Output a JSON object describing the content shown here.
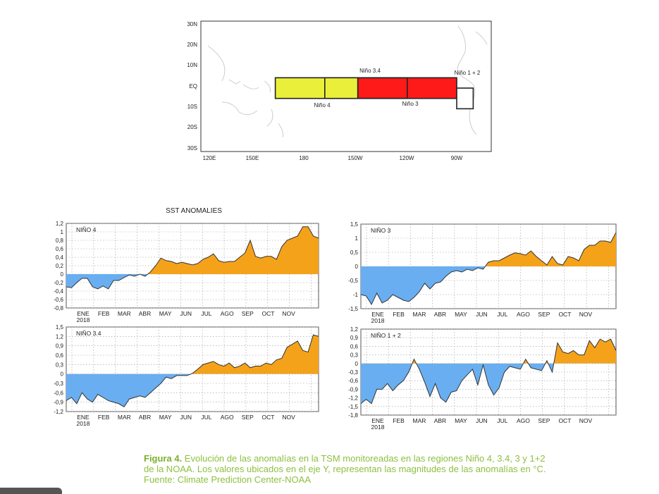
{
  "map": {
    "lat_labels": [
      "30N",
      "20N",
      "10N",
      "EQ",
      "10S",
      "20S",
      "30S"
    ],
    "lon_labels": [
      "120E",
      "150E",
      "180",
      "150W",
      "120W",
      "90W"
    ],
    "regions": [
      {
        "name": "Niño 4",
        "color": "#eaf03a",
        "lon": [
          160,
          210
        ],
        "lat": [
          -5,
          5
        ]
      },
      {
        "name": "Niño 3.4",
        "color": "#eaf03a",
        "lon": [
          190,
          240
        ],
        "lat": [
          -5,
          5
        ]
      },
      {
        "name": "Niño 3",
        "color": "#ff1a1a",
        "lon": [
          210,
          270
        ],
        "lat": [
          -5,
          5
        ]
      },
      {
        "name": "Niño 1 + 2",
        "color": "#ffffff",
        "lon": [
          270,
          280
        ],
        "lat": [
          -10,
          0
        ]
      }
    ],
    "label_nino4": "Niño 4",
    "label_nino34": "Niño 3.4",
    "label_nino3": "Niño 3",
    "label_nino12": "Niño 1 + 2"
  },
  "suptitle": "SST ANOMALIES",
  "colors": {
    "positive": "#f5a21b",
    "negative": "#69aef0",
    "line": "#333333"
  },
  "months": [
    "ENE",
    "FEB",
    "MAR",
    "ABR",
    "MAY",
    "JUN",
    "JUL",
    "AGO",
    "SEP",
    "OCT",
    "NOV"
  ],
  "year_label": "2018",
  "chart_data": [
    {
      "type": "area",
      "title": "NIÑO 4",
      "ylim": [
        -0.8,
        1.2
      ],
      "yticks": [
        "1,2",
        "1",
        "0,8",
        "0,6",
        "0,4",
        "0,2",
        "0",
        "-0,2",
        "-0,4",
        "-0,6",
        "-0,8"
      ],
      "x_weeks": [
        0,
        1,
        2,
        3,
        4,
        5,
        6,
        7,
        8,
        9,
        10,
        11,
        12,
        13,
        14,
        15,
        16,
        17,
        18,
        19,
        20,
        21,
        22,
        23,
        24,
        25,
        26,
        27,
        28,
        29,
        30,
        31,
        32,
        33,
        34,
        35,
        36,
        37,
        38,
        39,
        40,
        41,
        42,
        43,
        44,
        45,
        46,
        47,
        48
      ],
      "values": [
        -0.3,
        -0.32,
        -0.2,
        -0.1,
        -0.1,
        -0.3,
        -0.35,
        -0.28,
        -0.35,
        -0.15,
        -0.15,
        -0.08,
        -0.02,
        -0.05,
        0.0,
        -0.05,
        0.05,
        0.2,
        0.38,
        0.32,
        0.3,
        0.25,
        0.28,
        0.25,
        0.22,
        0.25,
        0.35,
        0.4,
        0.48,
        0.32,
        0.28,
        0.3,
        0.3,
        0.4,
        0.5,
        0.8,
        0.42,
        0.38,
        0.42,
        0.42,
        0.35,
        0.65,
        0.8,
        0.85,
        0.9,
        1.12,
        1.12,
        0.9,
        0.85
      ]
    },
    {
      "type": "area",
      "title": "NIÑO 3",
      "ylim": [
        -1.5,
        1.5
      ],
      "yticks": [
        "1,5",
        "1",
        "0,5",
        "0",
        "-0,5",
        "-1",
        "-1,5"
      ],
      "x_weeks": [
        0,
        1,
        2,
        3,
        4,
        5,
        6,
        7,
        8,
        9,
        10,
        11,
        12,
        13,
        14,
        15,
        16,
        17,
        18,
        19,
        20,
        21,
        22,
        23,
        24,
        25,
        26,
        27,
        28,
        29,
        30,
        31,
        32,
        33,
        34,
        35,
        36,
        37,
        38,
        39,
        40,
        41,
        42,
        43,
        44,
        45,
        46,
        47,
        48
      ],
      "values": [
        -1.0,
        -1.05,
        -1.35,
        -0.95,
        -1.3,
        -1.2,
        -1.0,
        -1.1,
        -1.2,
        -1.25,
        -1.1,
        -0.9,
        -0.6,
        -0.8,
        -0.6,
        -0.55,
        -0.35,
        -0.2,
        -0.15,
        -0.2,
        -0.1,
        -0.15,
        -0.05,
        -0.1,
        0.15,
        0.2,
        0.2,
        0.3,
        0.4,
        0.48,
        0.45,
        0.4,
        0.55,
        0.35,
        0.2,
        0.05,
        0.35,
        0.1,
        0.05,
        0.35,
        0.3,
        0.2,
        0.6,
        0.75,
        0.75,
        0.9,
        0.9,
        0.85,
        1.2
      ]
    },
    {
      "type": "area",
      "title": "NIÑO 3.4",
      "ylim": [
        -1.2,
        1.5
      ],
      "yticks": [
        "1,5",
        "1,2",
        "0,9",
        "0,6",
        "0,3",
        "0",
        "-0,3",
        "-0,6",
        "-0,9",
        "-1,2"
      ],
      "x_weeks": [
        0,
        1,
        2,
        3,
        4,
        5,
        6,
        7,
        8,
        9,
        10,
        11,
        12,
        13,
        14,
        15,
        16,
        17,
        18,
        19,
        20,
        21,
        22,
        23,
        24,
        25,
        26,
        27,
        28,
        29,
        30,
        31,
        32,
        33,
        34,
        35,
        36,
        37,
        38,
        39,
        40,
        41,
        42,
        43,
        44,
        45,
        46,
        47,
        48
      ],
      "values": [
        -0.85,
        -0.75,
        -0.95,
        -0.6,
        -0.8,
        -0.9,
        -0.65,
        -0.75,
        -0.85,
        -0.9,
        -0.95,
        -1.05,
        -0.8,
        -0.75,
        -0.7,
        -0.75,
        -0.6,
        -0.45,
        -0.3,
        -0.1,
        -0.15,
        -0.05,
        -0.05,
        -0.05,
        0.02,
        0.15,
        0.3,
        0.35,
        0.4,
        0.3,
        0.25,
        0.35,
        0.2,
        0.25,
        0.35,
        0.2,
        0.25,
        0.25,
        0.35,
        0.3,
        0.45,
        0.5,
        0.85,
        0.95,
        1.05,
        0.75,
        0.7,
        1.25,
        1.2
      ]
    },
    {
      "type": "area",
      "title": "NIÑO 1 + 2",
      "ylim": [
        -1.8,
        1.2
      ],
      "yticks": [
        "1,2",
        "0,9",
        "0,6",
        "0,3",
        "0",
        "-0,3",
        "-0,6",
        "-0,9",
        "-1,2",
        "-1,5",
        "-1,8"
      ],
      "x_weeks": [
        0,
        1,
        2,
        3,
        4,
        5,
        6,
        7,
        8,
        9,
        10,
        11,
        12,
        13,
        14,
        15,
        16,
        17,
        18,
        19,
        20,
        21,
        22,
        23,
        24,
        25,
        26,
        27,
        28,
        29,
        30,
        31,
        32,
        33,
        34,
        35,
        36,
        37,
        38,
        39,
        40,
        41,
        42,
        43,
        44,
        45,
        46,
        47,
        48
      ],
      "values": [
        -1.4,
        -1.25,
        -1.4,
        -0.9,
        -0.9,
        -0.7,
        -0.95,
        -0.75,
        -0.6,
        -0.3,
        0.15,
        -0.2,
        -0.65,
        -1.15,
        -0.7,
        -1.2,
        -1.35,
        -1.0,
        -0.95,
        -0.6,
        -0.4,
        -0.2,
        -0.75,
        -0.05,
        -0.75,
        -1.1,
        -0.85,
        -0.3,
        -0.1,
        -0.15,
        -0.2,
        0.15,
        -0.15,
        -0.2,
        -0.25,
        0.1,
        -0.3,
        0.72,
        0.4,
        0.35,
        0.45,
        0.3,
        0.3,
        0.8,
        0.55,
        0.85,
        0.75,
        0.85,
        0.45
      ]
    }
  ],
  "caption": {
    "lead": "Figura 4.",
    "line1": " Evolución de las anomalías en la TSM monitoreadas en las regiones Niño 4, 3.4, 3 y 1+2",
    "line2": "de la NOAA. Los valores ubicados en el eje Y, representan las magnitudes de las anomalías en °C.",
    "line3": "Fuente: Climate Prediction Center-NOAA"
  }
}
